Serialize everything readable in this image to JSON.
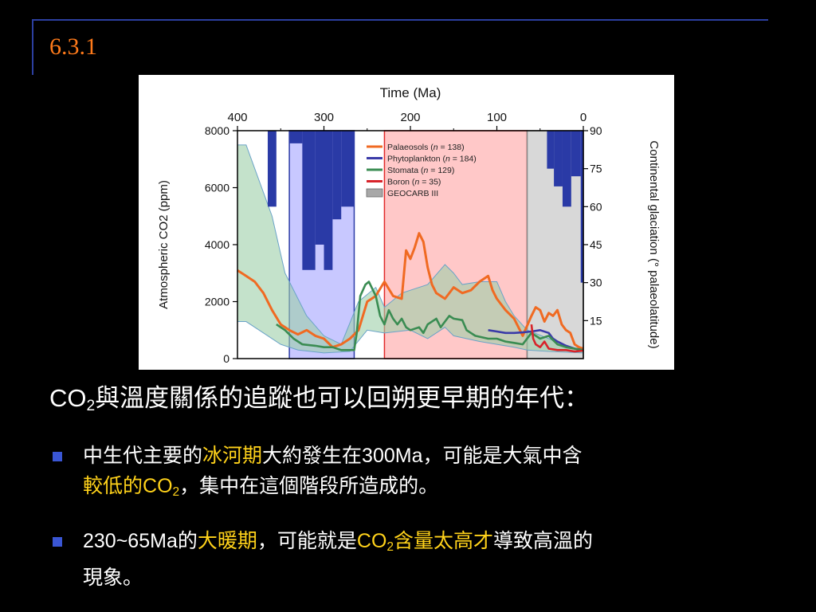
{
  "slide": {
    "number": "6.3.1"
  },
  "chart_data": {
    "type": "line",
    "title": "Time (Ma)",
    "xlabel": "Time (Ma)",
    "ylabel": "Atmospheric CO2 (ppm)",
    "y2label": "Continental glaciation (° palaeolatitude)",
    "xlim": [
      400,
      0
    ],
    "ylim": [
      0,
      8000
    ],
    "y2lim": [
      0,
      90
    ],
    "x_ticks": [
      "400",
      "300",
      "200",
      "100",
      "0"
    ],
    "y_ticks": [
      "0",
      "2000",
      "4000",
      "6000",
      "8000"
    ],
    "y2_ticks": [
      "15",
      "30",
      "45",
      "60",
      "75",
      "90"
    ],
    "legend_position": "top-center",
    "colors": {
      "palaeosols": "#f06a22",
      "phytoplankton": "#3b3ba8",
      "stomata": "#3a8c52",
      "boron": "#d8232a",
      "geocarb": "#9dcfa8",
      "glaciation": "#2a3aa6",
      "warm_band": "#ff9a9a",
      "cold_band": "#9a9aff",
      "grey_band": "#c8c8c8"
    },
    "legend": [
      {
        "key": "palaeosols",
        "label": "Palaeosols",
        "n": "138"
      },
      {
        "key": "phytoplankton",
        "label": "Phytoplankton",
        "n": "184"
      },
      {
        "key": "stomata",
        "label": "Stomata",
        "n": "129"
      },
      {
        "key": "boron",
        "label": "Boron",
        "n": "35"
      },
      {
        "key": "geocarb",
        "label": "GEOCARB III"
      }
    ],
    "bands": [
      {
        "key": "cold",
        "from": 340,
        "to": 265
      },
      {
        "key": "warm",
        "from": 230,
        "to": 65
      },
      {
        "key": "grey",
        "from": 65,
        "to": 0
      }
    ],
    "geocarb": {
      "upper": [
        [
          400,
          7500
        ],
        [
          390,
          7500
        ],
        [
          360,
          5000
        ],
        [
          345,
          3000
        ],
        [
          320,
          1500
        ],
        [
          300,
          800
        ],
        [
          280,
          500
        ],
        [
          260,
          2000
        ],
        [
          240,
          2500
        ],
        [
          230,
          1800
        ],
        [
          210,
          2300
        ],
        [
          200,
          2400
        ],
        [
          180,
          2600
        ],
        [
          160,
          3300
        ],
        [
          150,
          3000
        ],
        [
          140,
          2600
        ],
        [
          120,
          2700
        ],
        [
          100,
          2700
        ],
        [
          90,
          2000
        ],
        [
          80,
          1500
        ],
        [
          65,
          1000
        ],
        [
          40,
          700
        ],
        [
          20,
          450
        ],
        [
          0,
          300
        ]
      ],
      "lower": [
        [
          400,
          1300
        ],
        [
          390,
          1300
        ],
        [
          370,
          900
        ],
        [
          350,
          500
        ],
        [
          330,
          300
        ],
        [
          300,
          200
        ],
        [
          270,
          250
        ],
        [
          250,
          1000
        ],
        [
          230,
          900
        ],
        [
          200,
          1000
        ],
        [
          180,
          700
        ],
        [
          160,
          1100
        ],
        [
          150,
          800
        ],
        [
          120,
          600
        ],
        [
          100,
          500
        ],
        [
          80,
          400
        ],
        [
          65,
          300
        ],
        [
          40,
          250
        ],
        [
          0,
          200
        ]
      ]
    },
    "series": [
      {
        "name": "Palaeosols",
        "key": "palaeosols",
        "points": [
          [
            400,
            3100
          ],
          [
            390,
            2900
          ],
          [
            380,
            2700
          ],
          [
            370,
            2300
          ],
          [
            360,
            1700
          ],
          [
            350,
            1200
          ],
          [
            340,
            1000
          ],
          [
            330,
            850
          ],
          [
            320,
            1000
          ],
          [
            310,
            800
          ],
          [
            300,
            700
          ],
          [
            290,
            400
          ],
          [
            280,
            500
          ],
          [
            270,
            700
          ],
          [
            260,
            1000
          ],
          [
            250,
            2000
          ],
          [
            240,
            2200
          ],
          [
            230,
            2700
          ],
          [
            220,
            2200
          ],
          [
            210,
            2100
          ],
          [
            205,
            3800
          ],
          [
            200,
            3500
          ],
          [
            195,
            3900
          ],
          [
            190,
            4400
          ],
          [
            185,
            4100
          ],
          [
            180,
            3200
          ],
          [
            175,
            2600
          ],
          [
            170,
            2300
          ],
          [
            160,
            2100
          ],
          [
            150,
            2500
          ],
          [
            140,
            2300
          ],
          [
            130,
            2400
          ],
          [
            120,
            2700
          ],
          [
            110,
            2900
          ],
          [
            105,
            2400
          ],
          [
            100,
            2100
          ],
          [
            90,
            1700
          ],
          [
            80,
            1400
          ],
          [
            70,
            800
          ],
          [
            60,
            1500
          ],
          [
            55,
            1800
          ],
          [
            50,
            1700
          ],
          [
            45,
            1300
          ],
          [
            40,
            1600
          ],
          [
            35,
            1500
          ],
          [
            30,
            1700
          ],
          [
            25,
            1200
          ],
          [
            20,
            1000
          ],
          [
            15,
            900
          ],
          [
            10,
            500
          ],
          [
            5,
            400
          ],
          [
            0,
            350
          ]
        ]
      },
      {
        "name": "Phytoplankton",
        "key": "phytoplankton",
        "points": [
          [
            110,
            1000
          ],
          [
            100,
            950
          ],
          [
            90,
            900
          ],
          [
            80,
            900
          ],
          [
            70,
            920
          ],
          [
            60,
            950
          ],
          [
            50,
            1000
          ],
          [
            40,
            900
          ],
          [
            35,
            700
          ],
          [
            30,
            600
          ],
          [
            20,
            450
          ],
          [
            10,
            350
          ],
          [
            0,
            300
          ]
        ]
      },
      {
        "name": "Stomata",
        "key": "stomata",
        "points": [
          [
            355,
            1200
          ],
          [
            345,
            1000
          ],
          [
            335,
            700
          ],
          [
            325,
            500
          ],
          [
            310,
            450
          ],
          [
            300,
            400
          ],
          [
            290,
            400
          ],
          [
            280,
            300
          ],
          [
            265,
            300
          ],
          [
            262,
            900
          ],
          [
            258,
            2200
          ],
          [
            252,
            2600
          ],
          [
            248,
            2700
          ],
          [
            240,
            2200
          ],
          [
            235,
            1500
          ],
          [
            230,
            1200
          ],
          [
            225,
            1700
          ],
          [
            220,
            1400
          ],
          [
            215,
            1200
          ],
          [
            210,
            1400
          ],
          [
            205,
            1100
          ],
          [
            200,
            1000
          ],
          [
            190,
            1100
          ],
          [
            185,
            900
          ],
          [
            180,
            1200
          ],
          [
            170,
            1400
          ],
          [
            165,
            1100
          ],
          [
            160,
            1300
          ],
          [
            155,
            1500
          ],
          [
            150,
            1400
          ],
          [
            140,
            1350
          ],
          [
            135,
            1000
          ],
          [
            125,
            800
          ],
          [
            110,
            700
          ],
          [
            100,
            700
          ],
          [
            90,
            600
          ],
          [
            80,
            550
          ],
          [
            70,
            500
          ],
          [
            60,
            900
          ],
          [
            50,
            700
          ],
          [
            40,
            800
          ],
          [
            30,
            500
          ],
          [
            20,
            400
          ],
          [
            10,
            350
          ],
          [
            0,
            300
          ]
        ]
      },
      {
        "name": "Boron",
        "key": "boron",
        "points": [
          [
            60,
            1200
          ],
          [
            58,
            700
          ],
          [
            55,
            500
          ],
          [
            50,
            400
          ],
          [
            45,
            600
          ],
          [
            40,
            350
          ],
          [
            30,
            300
          ],
          [
            20,
            300
          ],
          [
            10,
            250
          ],
          [
            0,
            280
          ]
        ]
      }
    ],
    "glaciation": [
      {
        "from": 365,
        "to": 355,
        "lat": 60
      },
      {
        "from": 340,
        "to": 325,
        "lat": 85
      },
      {
        "from": 325,
        "to": 310,
        "lat": 35
      },
      {
        "from": 310,
        "to": 300,
        "lat": 45
      },
      {
        "from": 300,
        "to": 290,
        "lat": 35
      },
      {
        "from": 290,
        "to": 280,
        "lat": 55
      },
      {
        "from": 280,
        "to": 265,
        "lat": 60
      },
      {
        "from": 42,
        "to": 34,
        "lat": 75
      },
      {
        "from": 34,
        "to": 24,
        "lat": 68
      },
      {
        "from": 24,
        "to": 14,
        "lat": 60
      },
      {
        "from": 14,
        "to": 3,
        "lat": 72
      },
      {
        "from": 3,
        "to": 0,
        "lat": 30
      }
    ]
  },
  "heading": {
    "co2_prefix": "CO",
    "co2_sub": "2",
    "text": "與溫度關係的追蹤也可以回朔更早期的年代："
  },
  "bullet1": {
    "line1_a": "中生代主要的",
    "line1_hl": "冰河期",
    "line1_b": "大約發生在",
    "line1_num": "300Ma",
    "line1_c": "，可能是大氣中含",
    "line2_hl": "較低的",
    "line2_co2": "CO",
    "line2_sub": "2",
    "line2_b": "，集中在這個階段所造成的。"
  },
  "bullet2": {
    "line1_num": "230~65Ma",
    "line1_a": "的",
    "line1_hl": "大暖期",
    "line1_b": "，可能就是",
    "line1_co2": "CO",
    "line1_sub": "2",
    "line1_hl2": "含量太高才",
    "line1_c": "導致高溫的",
    "line2": "現象。"
  }
}
